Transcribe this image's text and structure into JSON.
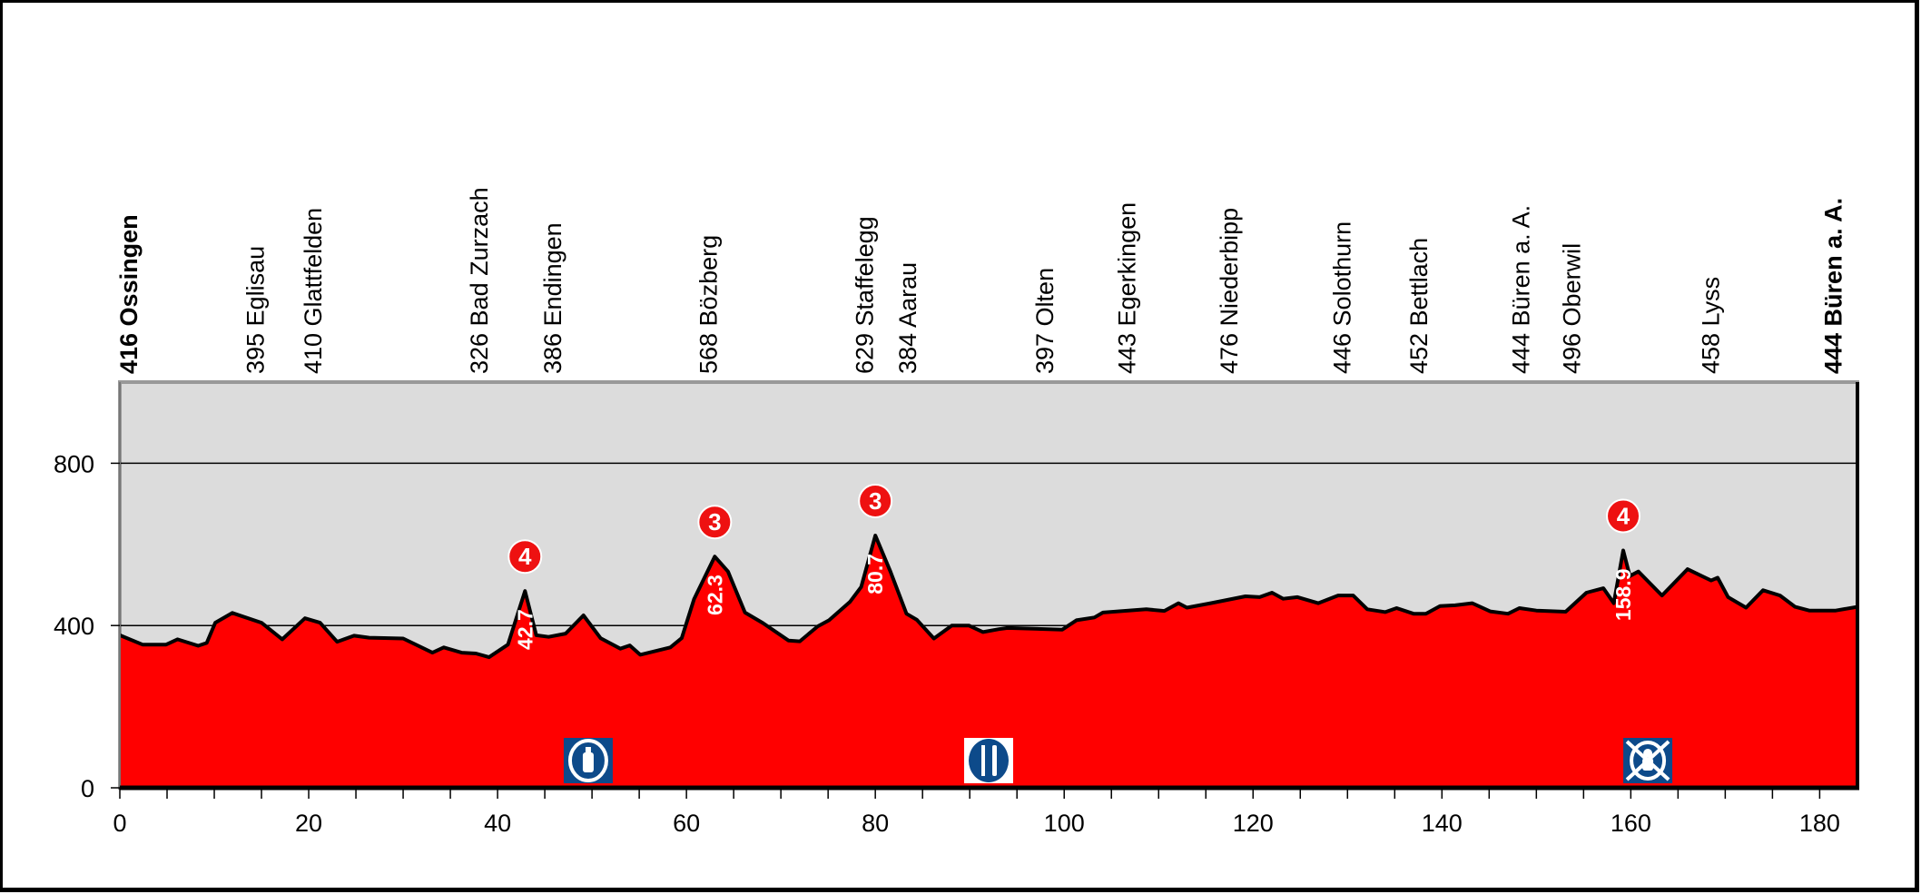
{
  "chart_data": {
    "type": "area",
    "title": "",
    "xlabel": "",
    "ylabel": "",
    "xlim": [
      0,
      184
    ],
    "ylim": [
      0,
      1000
    ],
    "grid": {
      "y": [
        400,
        800
      ]
    },
    "x_ticks": [
      "0",
      "20",
      "40",
      "60",
      "80",
      "100",
      "120",
      "140",
      "160",
      "180"
    ],
    "y_ticks": [
      "0",
      "400",
      "800"
    ],
    "colors": {
      "fill": "#ff0000",
      "line": "#000000",
      "plot_bg": "#dcdcdc",
      "icon_bg": "#0d4a8a"
    },
    "profile": {
      "x": [
        0,
        2.4,
        4.9,
        6.1,
        8.3,
        9.2,
        10.1,
        11.9,
        15,
        17.2,
        19.6,
        21.2,
        23,
        24.8,
        26.4,
        30,
        33.1,
        34.3,
        36.2,
        37.7,
        39.1,
        41.1,
        42.9,
        44.1,
        45.4,
        47.2,
        49.1,
        50.9,
        53,
        54,
        55.1,
        58.3,
        59.5,
        60.8,
        63,
        64.4,
        66.2,
        68.1,
        70.8,
        72,
        73.9,
        75.1,
        77.3,
        78.5,
        80,
        81.6,
        83.3,
        84.4,
        86.2,
        88.1,
        89.9,
        91.4,
        93.1,
        94,
        99.8,
        101.3,
        103.2,
        104.1,
        108.7,
        110.6,
        112.1,
        113,
        115.5,
        119.2,
        120.7,
        122,
        123.2,
        124.7,
        126.9,
        129,
        130.6,
        132.1,
        134,
        135.2,
        137,
        138.3,
        139.8,
        141.4,
        143.2,
        145.1,
        147,
        148.2,
        150,
        153.1,
        155.3,
        157.1,
        158.2,
        159.2,
        159.9,
        160.8,
        163.3,
        166,
        168.5,
        169.2,
        170.3,
        172.2,
        174,
        175.8,
        177.4,
        178.9,
        181.7,
        184
      ],
      "y": [
        376,
        353,
        353,
        366,
        350,
        357,
        407,
        431,
        407,
        366,
        418,
        407,
        360,
        375,
        370,
        368,
        333,
        346,
        333,
        331,
        322,
        353,
        485,
        376,
        372,
        380,
        425,
        369,
        343,
        351,
        328,
        346,
        369,
        465,
        570,
        533,
        432,
        406,
        363,
        361,
        398,
        413,
        458,
        495,
        622,
        533,
        429,
        414,
        368,
        400,
        400,
        384,
        391,
        394,
        390,
        413,
        420,
        432,
        440,
        436,
        455,
        444,
        455,
        472,
        470,
        481,
        466,
        470,
        455,
        474,
        474,
        440,
        433,
        443,
        429,
        429,
        448,
        450,
        455,
        435,
        429,
        443,
        437,
        434,
        481,
        492,
        455,
        585,
        522,
        533,
        474,
        539,
        511,
        518,
        470,
        444,
        487,
        474,
        446,
        437,
        437,
        446
      ]
    },
    "places": [
      {
        "label": "416 Ossingen",
        "km": 0,
        "bold": true
      },
      {
        "label": "395 Eglisau",
        "km": 13.4,
        "bold": false
      },
      {
        "label": "410 Glattfelden",
        "km": 19.5,
        "bold": false
      },
      {
        "label": "326 Bad Zurzach",
        "km": 37.1,
        "bold": false
      },
      {
        "label": "386 Endingen",
        "km": 44.9,
        "bold": false
      },
      {
        "label": "568 Bözberg",
        "km": 61.4,
        "bold": false
      },
      {
        "label": "629 Staffelegg",
        "km": 77.9,
        "bold": false
      },
      {
        "label": "384 Aarau",
        "km": 82.5,
        "bold": false
      },
      {
        "label": "397 Olten",
        "km": 97,
        "bold": false
      },
      {
        "label": "443 Egerkingen",
        "km": 105.7,
        "bold": false
      },
      {
        "label": "476 Niederbipp",
        "km": 116.5,
        "bold": false
      },
      {
        "label": "446 Solothurn",
        "km": 128.5,
        "bold": false
      },
      {
        "label": "452 Bettlach",
        "km": 136.6,
        "bold": false
      },
      {
        "label": "444 Büren a. A.",
        "km": 147.4,
        "bold": false
      },
      {
        "label": "496 Oberwil",
        "km": 152.8,
        "bold": false
      },
      {
        "label": "458 Lyss",
        "km": 167.5,
        "bold": false
      },
      {
        "label": "444 Büren a. A.",
        "km": 180.5,
        "bold": true
      }
    ],
    "climbs": [
      {
        "category": "4",
        "km": 42.9,
        "label": "42.7",
        "elevation": 485
      },
      {
        "category": "3",
        "km": 63,
        "label": "62.3",
        "elevation": 570
      },
      {
        "category": "3",
        "km": 80,
        "label": "80.7",
        "elevation": 622
      },
      {
        "category": "4",
        "km": 159.2,
        "label": "158.9",
        "elevation": 585
      }
    ],
    "icons": [
      {
        "name": "feed-zone-bottle-icon",
        "km": 49.6
      },
      {
        "name": "food-cutlery-icon",
        "km": 92
      },
      {
        "name": "no-litter-zone-icon",
        "km": 161.8
      }
    ]
  }
}
